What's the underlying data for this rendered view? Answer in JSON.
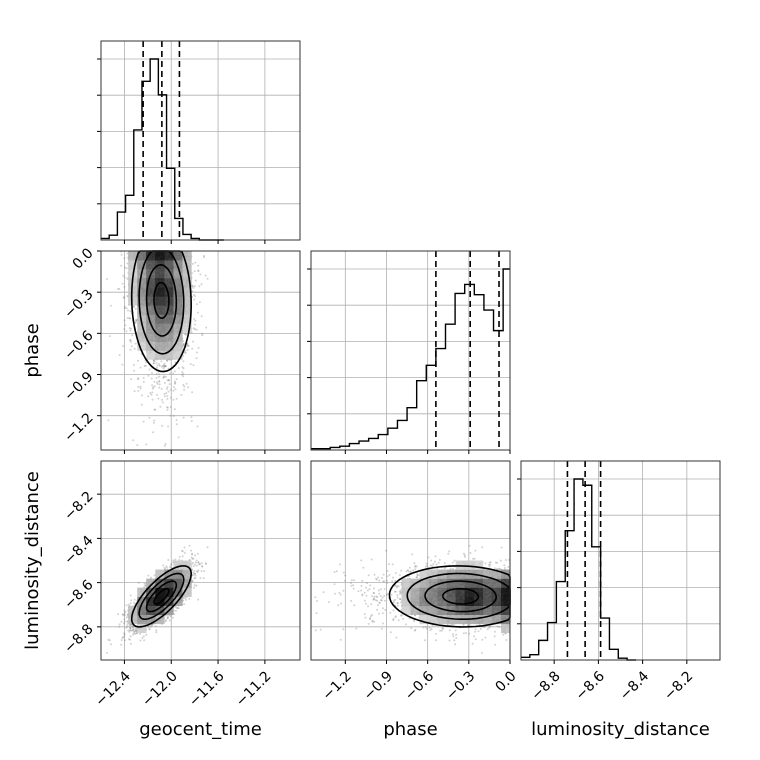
{
  "chart_data": {
    "type": "corner",
    "grid": true,
    "parameters": [
      {
        "name": "geocent_time",
        "label": "geocent_time",
        "range": [
          -12.6,
          -10.9
        ],
        "ticks": [
          -12.4,
          -12.0,
          -11.6,
          -11.2
        ],
        "tick_labels": [
          "−12.4",
          "−12.0",
          "−11.6",
          "−11.2"
        ],
        "quantiles": [
          -12.24,
          -12.08,
          -11.93
        ],
        "mean": -12.08,
        "sd": 0.13
      },
      {
        "name": "phase",
        "label": "phase",
        "range": [
          -1.45,
          0.0
        ],
        "ticks": [
          -1.2,
          -0.9,
          -0.6,
          -0.3,
          0.0
        ],
        "tick_labels": [
          "−1.2",
          "−0.9",
          "−0.6",
          "−0.3",
          "0.0"
        ],
        "quantiles": [
          -0.54,
          -0.29,
          -0.08
        ]
      },
      {
        "name": "luminosity_distance",
        "label": "luminosity_distance",
        "range": [
          -8.95,
          -8.05
        ],
        "ticks": [
          -8.8,
          -8.6,
          -8.4,
          -8.2
        ],
        "tick_labels": [
          "−8.8",
          "−8.6",
          "−8.4",
          "−8.2"
        ],
        "quantiles": [
          -8.74,
          -8.66,
          -8.59
        ],
        "mean": -8.66,
        "sd": 0.07
      }
    ],
    "histograms": {
      "geocent_time": {
        "bin_edges": [
          -12.6,
          -12.53,
          -12.46,
          -12.39,
          -12.32,
          -12.25,
          -12.18,
          -12.11,
          -12.04,
          -11.97,
          -11.9,
          -11.83,
          -11.76,
          -11.69,
          -11.62,
          -11.55
        ],
        "counts": [
          2,
          6,
          35,
          56,
          138,
          199,
          227,
          182,
          90,
          27,
          7,
          2,
          0,
          0,
          0
        ]
      },
      "phase": {
        "bin_edges": [
          -1.45,
          -1.38,
          -1.31,
          -1.24,
          -1.17,
          -1.1,
          -1.03,
          -0.96,
          -0.89,
          -0.82,
          -0.75,
          -0.68,
          -0.61,
          -0.54,
          -0.47,
          -0.4,
          -0.33,
          -0.26,
          -0.19,
          -0.12,
          -0.05,
          0.0
        ],
        "counts": [
          1,
          1,
          2,
          3,
          5,
          7,
          9,
          12,
          17,
          23,
          33,
          54,
          66,
          79,
          98,
          122,
          129,
          121,
          109,
          93,
          141
        ]
      },
      "luminosity_distance": {
        "bin_edges": [
          -8.95,
          -8.91,
          -8.87,
          -8.83,
          -8.79,
          -8.75,
          -8.71,
          -8.67,
          -8.63,
          -8.59,
          -8.55,
          -8.51,
          -8.47,
          -8.43
        ],
        "counts": [
          3,
          6,
          22,
          42,
          88,
          145,
          203,
          196,
          127,
          47,
          12,
          2,
          0
        ]
      }
    },
    "scatter_pairs": [
      {
        "x": "geocent_time",
        "y": "phase"
      },
      {
        "x": "geocent_time",
        "y": "luminosity_distance"
      },
      {
        "x": "phase",
        "y": "luminosity_distance"
      }
    ],
    "contour_levels": [
      "0.5",
      "1.0",
      "1.5",
      "2.0"
    ]
  },
  "colors": {
    "points": "#7f7f7f",
    "density_dark": "#000000",
    "line": "#000000",
    "grid": "#b0b0b0"
  }
}
